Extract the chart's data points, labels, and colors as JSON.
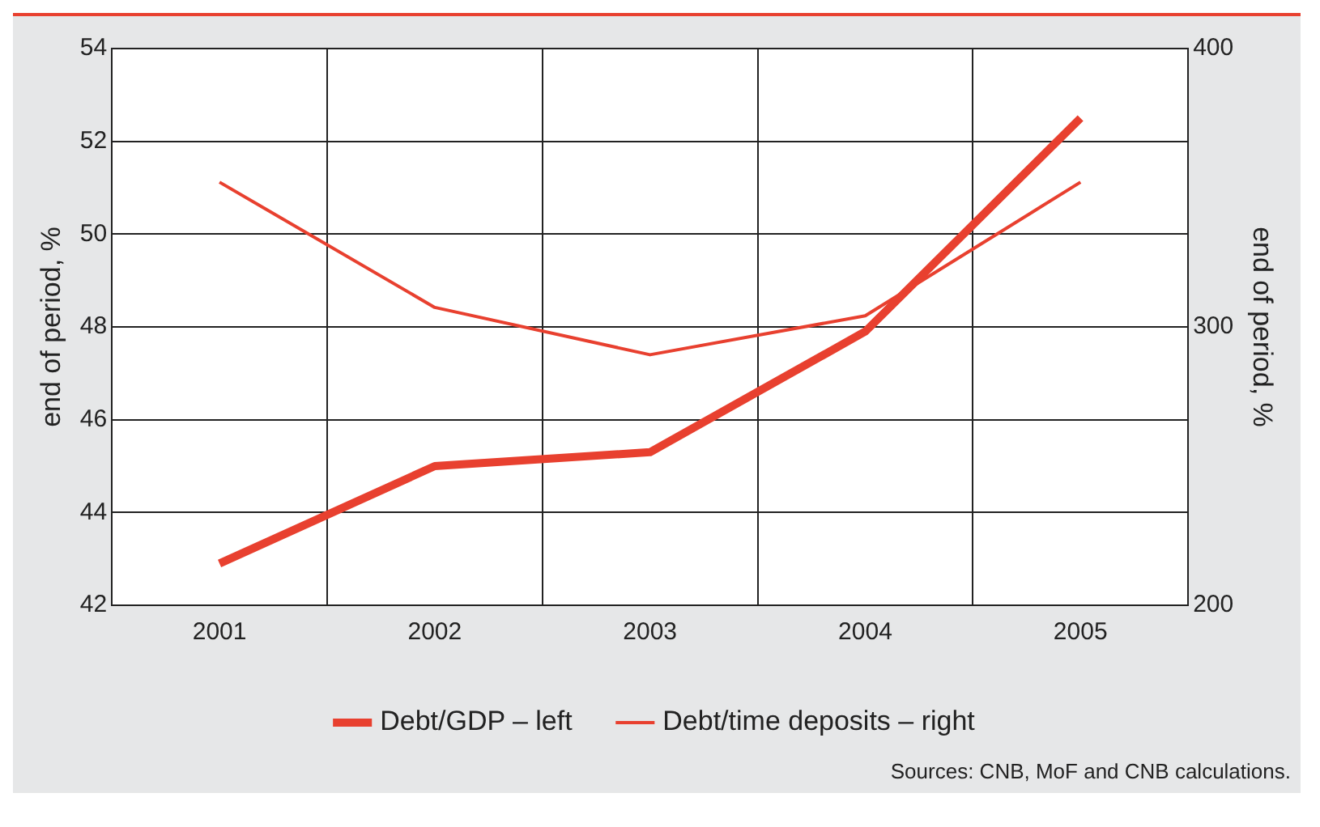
{
  "chart_data": {
    "type": "line",
    "categories": [
      "2001",
      "2002",
      "2003",
      "2004",
      "2005"
    ],
    "series": [
      {
        "name": "Debt/GDP – left",
        "color": "#e8402f",
        "values": [
          42.9,
          45.0,
          45.3,
          47.9,
          52.5
        ]
      },
      {
        "name": "Debt/time deposits – right",
        "color": "#e8402f",
        "values": [
          352,
          307,
          290,
          304,
          352
        ],
        "axis": "y2"
      }
    ],
    "ylabel": "end of period, %",
    "y2label": "end of period, %",
    "ylim": [
      42,
      54
    ],
    "yticks": [
      42,
      44,
      46,
      48,
      50,
      52,
      54
    ],
    "y2lim": [
      200,
      400
    ],
    "y2ticks": [
      200,
      300,
      400
    ],
    "grid": true,
    "legend": "bottom",
    "marker": "none",
    "line_style": "solid",
    "annotations": [
      "Sources: CNB, MoF and CNB calculations."
    ]
  }
}
